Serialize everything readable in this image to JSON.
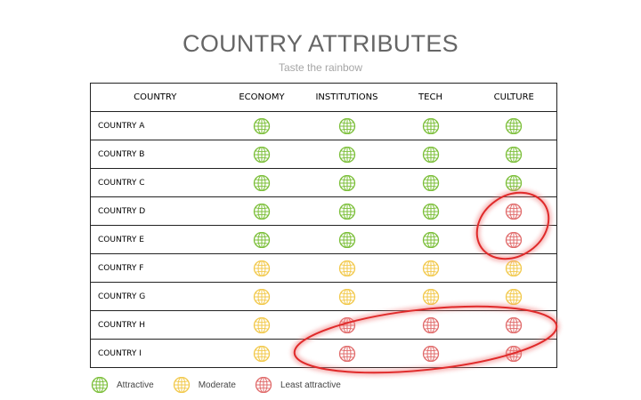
{
  "title": "COUNTRY ATTRIBUTES",
  "subtitle": "Taste the rainbow",
  "columns": [
    "COUNTRY",
    "ECONOMY",
    "INSTITUTIONS",
    "TECH",
    "CULTURE"
  ],
  "rows": [
    {
      "country": "COUNTRY A",
      "ratings": [
        "attractive",
        "attractive",
        "attractive",
        "attractive"
      ]
    },
    {
      "country": "COUNTRY B",
      "ratings": [
        "attractive",
        "attractive",
        "attractive",
        "attractive"
      ]
    },
    {
      "country": "COUNTRY C",
      "ratings": [
        "attractive",
        "attractive",
        "attractive",
        "attractive"
      ]
    },
    {
      "country": "COUNTRY D",
      "ratings": [
        "attractive",
        "attractive",
        "attractive",
        "least"
      ]
    },
    {
      "country": "COUNTRY E",
      "ratings": [
        "attractive",
        "attractive",
        "attractive",
        "least"
      ]
    },
    {
      "country": "COUNTRY F",
      "ratings": [
        "moderate",
        "moderate",
        "moderate",
        "moderate"
      ]
    },
    {
      "country": "COUNTRY G",
      "ratings": [
        "moderate",
        "moderate",
        "moderate",
        "moderate"
      ]
    },
    {
      "country": "COUNTRY H",
      "ratings": [
        "moderate",
        "least",
        "least",
        "least"
      ]
    },
    {
      "country": "COUNTRY I",
      "ratings": [
        "moderate",
        "least",
        "least",
        "least"
      ]
    }
  ],
  "legend": [
    {
      "key": "attractive",
      "label": "Attractive"
    },
    {
      "key": "moderate",
      "label": "Moderate"
    },
    {
      "key": "least",
      "label": "Least attractive"
    }
  ],
  "colors": {
    "attractive": "#7cbf3a",
    "moderate": "#f2c94c",
    "least": "#e06b6b",
    "highlight": "#e02a2a"
  },
  "icons": {
    "rating": "globe-icon"
  }
}
